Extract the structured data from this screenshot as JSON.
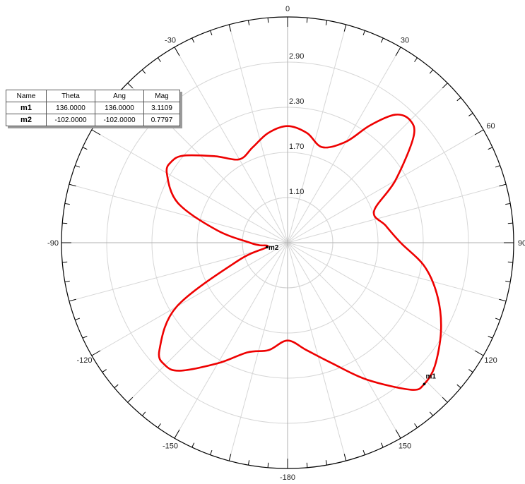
{
  "marker_table": {
    "headers": [
      "Name",
      "Theta",
      "Ang",
      "Mag"
    ],
    "rows": [
      {
        "name": "m1",
        "theta": "136.0000",
        "ang": "136.0000",
        "mag": "3.1109"
      },
      {
        "name": "m2",
        "theta": "-102.0000",
        "ang": "-102.0000",
        "mag": "0.7797"
      }
    ]
  },
  "chart_data": {
    "type": "polar-line",
    "title": "",
    "angle_unit": "deg",
    "angle_ticks": [
      0,
      30,
      60,
      90,
      120,
      150,
      -180,
      -150,
      -120,
      -90,
      -60,
      -30
    ],
    "angle_labels": [
      "0",
      "30",
      "60",
      "90",
      "120",
      "150",
      "-180",
      "-150",
      "-120",
      "-90",
      "-60",
      "-30"
    ],
    "radial_ticks": [
      1.1,
      1.7,
      2.3,
      2.9
    ],
    "radial_labels": [
      "1.10",
      "1.70",
      "2.30",
      "2.90"
    ],
    "rlim": [
      0.5,
      3.5
    ],
    "grid": true,
    "series": [
      {
        "color": "#ee0000",
        "points": [
          {
            "theta": -180,
            "r": 1.8
          },
          {
            "theta": -170,
            "r": 1.95
          },
          {
            "theta": -160,
            "r": 2.05
          },
          {
            "theta": -150,
            "r": 2.35
          },
          {
            "theta": -140,
            "r": 2.72
          },
          {
            "theta": -135,
            "r": 2.8
          },
          {
            "theta": -130,
            "r": 2.72
          },
          {
            "theta": -120,
            "r": 2.2
          },
          {
            "theta": -110,
            "r": 1.2
          },
          {
            "theta": -102,
            "r": 0.78
          },
          {
            "theta": -95,
            "r": 0.88
          },
          {
            "theta": -90,
            "r": 1.0
          },
          {
            "theta": -80,
            "r": 1.45
          },
          {
            "theta": -70,
            "r": 2.05
          },
          {
            "theta": -60,
            "r": 2.35
          },
          {
            "theta": -55,
            "r": 2.38
          },
          {
            "theta": -50,
            "r": 2.3
          },
          {
            "theta": -40,
            "r": 2.0
          },
          {
            "theta": -30,
            "r": 1.78
          },
          {
            "theta": -20,
            "r": 1.85
          },
          {
            "theta": -10,
            "r": 1.98
          },
          {
            "theta": 0,
            "r": 2.05
          },
          {
            "theta": 10,
            "r": 1.98
          },
          {
            "theta": 20,
            "r": 1.85
          },
          {
            "theta": 30,
            "r": 2.05
          },
          {
            "theta": 35,
            "r": 2.4
          },
          {
            "theta": 40,
            "r": 2.72
          },
          {
            "theta": 45,
            "r": 2.8
          },
          {
            "theta": 50,
            "r": 2.68
          },
          {
            "theta": 60,
            "r": 2.15
          },
          {
            "theta": 70,
            "r": 1.72
          },
          {
            "theta": 80,
            "r": 1.82
          },
          {
            "theta": 90,
            "r": 2.0
          },
          {
            "theta": 100,
            "r": 2.35
          },
          {
            "theta": 110,
            "r": 2.62
          },
          {
            "theta": 120,
            "r": 2.85
          },
          {
            "theta": 130,
            "r": 3.05
          },
          {
            "theta": 136,
            "r": 3.11
          },
          {
            "theta": 140,
            "r": 3.05
          },
          {
            "theta": 150,
            "r": 2.6
          },
          {
            "theta": 160,
            "r": 2.2
          },
          {
            "theta": 170,
            "r": 1.95
          }
        ]
      }
    ],
    "markers": [
      {
        "name": "m1",
        "theta": 136,
        "r": 3.1109
      },
      {
        "name": "m2",
        "theta": -102,
        "r": 0.7797
      }
    ]
  }
}
